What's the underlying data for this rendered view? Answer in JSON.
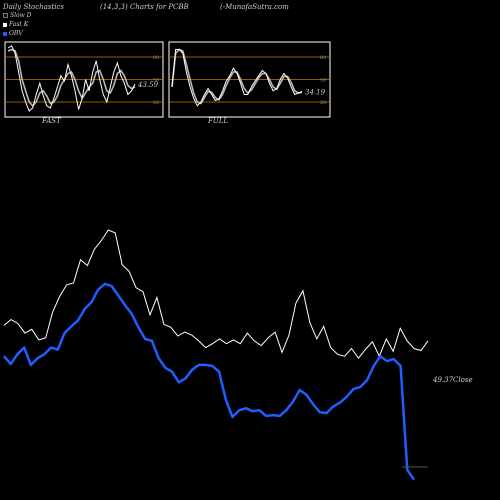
{
  "header": {
    "left": "Daily Stochastics",
    "center": "(14,3,3) Charts for PCBB",
    "right": "(-MunafaSutra.com"
  },
  "legend": [
    {
      "label": "Slow D",
      "color": "#111111"
    },
    {
      "label": "Fast K",
      "color": "#ffffff"
    },
    {
      "label": "OBV",
      "color": "#1f5fff"
    }
  ],
  "colors": {
    "bg": "#000000",
    "white": "#ffffff",
    "obv": "#1f5fff",
    "level": "#c87800",
    "tick": "#8a8a8a"
  },
  "panels": [
    {
      "name": "fast",
      "label": "FAST",
      "value_label": "43.59",
      "ticks": [
        "80",
        "50",
        "20"
      ]
    },
    {
      "name": "full",
      "label": "FULL",
      "value_label": "34.19",
      "ticks": [
        "80",
        "50",
        "20"
      ]
    }
  ],
  "close_label": "49.37Close",
  "chart_data": [
    {
      "type": "line",
      "title": "FAST",
      "ylim": [
        0,
        100
      ],
      "levels": [
        20,
        50,
        80
      ],
      "series": [
        {
          "name": "Fast K",
          "values": [
            92,
            95,
            85,
            60,
            35,
            20,
            8,
            12,
            30,
            45,
            28,
            15,
            12,
            25,
            40,
            55,
            48,
            70,
            55,
            35,
            10,
            25,
            50,
            35,
            60,
            75,
            50,
            30,
            20,
            40,
            60,
            72,
            55,
            45,
            30,
            35,
            44
          ]
        },
        {
          "name": "Slow D",
          "values": [
            88,
            90,
            88,
            75,
            50,
            35,
            20,
            15,
            20,
            32,
            35,
            28,
            18,
            20,
            28,
            42,
            50,
            58,
            60,
            50,
            35,
            25,
            32,
            40,
            45,
            60,
            62,
            50,
            35,
            32,
            42,
            58,
            62,
            55,
            42,
            38,
            40
          ]
        }
      ]
    },
    {
      "type": "line",
      "title": "FULL",
      "ylim": [
        0,
        100
      ],
      "levels": [
        20,
        50,
        80
      ],
      "series": [
        {
          "name": "Fast K",
          "values": [
            40,
            90,
            90,
            85,
            60,
            40,
            25,
            15,
            20,
            30,
            38,
            30,
            22,
            24,
            35,
            48,
            55,
            65,
            58,
            45,
            30,
            30,
            40,
            48,
            55,
            62,
            58,
            45,
            35,
            38,
            50,
            58,
            52,
            40,
            30,
            32,
            34
          ]
        },
        {
          "name": "Slow D",
          "values": [
            40,
            85,
            90,
            88,
            70,
            50,
            32,
            20,
            18,
            26,
            34,
            33,
            26,
            23,
            30,
            42,
            52,
            60,
            60,
            50,
            38,
            32,
            36,
            44,
            52,
            58,
            58,
            50,
            40,
            37,
            45,
            54,
            54,
            46,
            35,
            32,
            33
          ]
        }
      ]
    },
    {
      "type": "line",
      "title": "",
      "series": [
        {
          "name": "Price",
          "values": [
            45.0,
            45.6,
            45.2,
            44.2,
            44.6,
            43.5,
            43.7,
            46.4,
            48.0,
            49.2,
            49.4,
            51.8,
            51.2,
            52.9,
            53.8,
            54.9,
            54.6,
            51.3,
            50.6,
            48.9,
            48.5,
            46.1,
            47.9,
            45.1,
            44.8,
            43.9,
            44.3,
            44.0,
            43.4,
            42.7,
            43.1,
            43.6,
            43.1,
            43.5,
            43.1,
            44.2,
            43.4,
            42.9,
            43.7,
            44.3,
            42.2,
            44.0,
            47.3,
            48.6,
            45.3,
            43.6,
            44.9,
            42.7,
            42.0,
            41.8,
            42.6,
            41.6,
            42.5,
            43.3,
            41.8,
            43.6,
            42.3,
            44.7,
            43.4,
            42.6,
            42.4,
            43.4
          ]
        },
        {
          "name": "OBV",
          "values": [
            41.8,
            41.0,
            42.0,
            42.7,
            40.9,
            41.6,
            42.0,
            42.7,
            42.5,
            44.2,
            44.9,
            45.5,
            46.7,
            47.4,
            48.7,
            49.3,
            49.1,
            48.1,
            47.1,
            46.2,
            44.8,
            43.6,
            43.4,
            41.6,
            40.6,
            40.2,
            39.1,
            39.5,
            40.4,
            40.9,
            40.9,
            40.8,
            40.2,
            37.3,
            35.5,
            36.2,
            36.4,
            36.1,
            36.2,
            35.6,
            35.7,
            35.6,
            36.2,
            37.1,
            38.3,
            37.8,
            36.8,
            36.0,
            35.9,
            36.6,
            37.0,
            37.6,
            38.4,
            38.6,
            39.3,
            40.8,
            41.8,
            41.3,
            41.5,
            40.8,
            30.0,
            29.0
          ]
        }
      ]
    }
  ]
}
